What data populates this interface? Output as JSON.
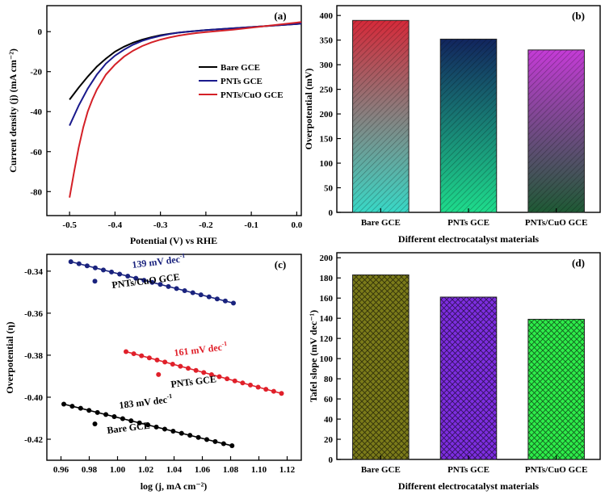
{
  "chart_data": [
    {
      "panel": "(a)",
      "type": "line",
      "xlabel": "Potential (V) vs RHE",
      "ylabel": "Current density (j) (mA cm⁻²)",
      "xlim": [
        -0.55,
        0.01
      ],
      "ylim": [
        -92,
        13
      ],
      "xticks": [
        -0.5,
        -0.4,
        -0.3,
        -0.2,
        -0.1,
        0.0
      ],
      "xtick_labels": [
        "-0.5",
        "-0.4",
        "-0.3",
        "-0.2",
        "-0.1",
        "0.0"
      ],
      "yticks": [
        0,
        -20,
        -40,
        -60,
        -80
      ],
      "ytick_labels": [
        "0",
        "-20",
        "-40",
        "-60",
        "-80"
      ],
      "legend_position": "right",
      "series": [
        {
          "name": "Bare GCE",
          "color": "#000000",
          "x": [
            -0.5,
            -0.48,
            -0.46,
            -0.44,
            -0.42,
            -0.4,
            -0.38,
            -0.36,
            -0.34,
            -0.32,
            -0.3,
            -0.28,
            -0.26,
            -0.24,
            -0.22,
            -0.2,
            -0.18,
            -0.16,
            -0.14,
            -0.12,
            -0.1,
            -0.08,
            -0.06,
            -0.04,
            -0.02,
            0.0,
            0.01
          ],
          "y": [
            -34,
            -28,
            -22.5,
            -17.5,
            -13.5,
            -10,
            -7.5,
            -5.5,
            -4,
            -2.8,
            -1.8,
            -1.1,
            -0.5,
            0,
            0.4,
            0.8,
            1.1,
            1.4,
            1.7,
            2,
            2.3,
            2.6,
            2.9,
            3.2,
            3.5,
            3.8,
            4
          ]
        },
        {
          "name": "PNTs GCE",
          "color": "#1a1a8c",
          "x": [
            -0.5,
            -0.48,
            -0.46,
            -0.44,
            -0.42,
            -0.4,
            -0.38,
            -0.36,
            -0.34,
            -0.32,
            -0.3,
            -0.28,
            -0.26,
            -0.24,
            -0.22,
            -0.2,
            -0.18,
            -0.16,
            -0.14,
            -0.12,
            -0.1,
            -0.08,
            -0.06,
            -0.04,
            -0.02,
            0.0,
            0.01
          ],
          "y": [
            -47,
            -37,
            -28.5,
            -21.5,
            -16,
            -12,
            -9,
            -6.5,
            -4.6,
            -3.2,
            -2.1,
            -1.2,
            -0.5,
            0,
            0.4,
            0.8,
            1.1,
            1.4,
            1.7,
            2,
            2.3,
            2.6,
            2.9,
            3.2,
            3.5,
            3.8,
            4
          ]
        },
        {
          "name": "PNTs/CuO GCE",
          "color": "#d42027",
          "x": [
            -0.5,
            -0.49,
            -0.48,
            -0.47,
            -0.46,
            -0.45,
            -0.44,
            -0.42,
            -0.4,
            -0.38,
            -0.36,
            -0.34,
            -0.32,
            -0.3,
            -0.28,
            -0.26,
            -0.24,
            -0.22,
            -0.2,
            -0.18,
            -0.16,
            -0.14,
            -0.12,
            -0.1,
            -0.08,
            -0.06,
            -0.04,
            -0.02,
            0.0,
            0.01
          ],
          "y": [
            -83,
            -70,
            -58,
            -48,
            -40,
            -34,
            -29,
            -21.5,
            -16.5,
            -12.5,
            -9.5,
            -7.2,
            -5.4,
            -4,
            -2.9,
            -2,
            -1.3,
            -0.7,
            -0.2,
            0.2,
            0.6,
            1,
            1.5,
            2,
            2.5,
            3,
            3.5,
            4,
            4.5,
            4.8
          ]
        }
      ]
    },
    {
      "panel": "(b)",
      "type": "bar",
      "xlabel": "Different electrocatalyst materials",
      "ylabel": "Overpotential (mV)",
      "ylim": [
        0,
        420
      ],
      "yticks": [
        0,
        50,
        100,
        150,
        200,
        250,
        300,
        350,
        400
      ],
      "ytick_labels": [
        "0",
        "50",
        "100",
        "150",
        "200",
        "250",
        "300",
        "350",
        "400"
      ],
      "categories": [
        "Bare GCE",
        "PNTs GCE",
        "PNTs/CuO GCE"
      ],
      "values": [
        390,
        352,
        330
      ],
      "gradients": [
        [
          "#d52a3a",
          "#38d8c6"
        ],
        [
          "#12255e",
          "#1edc8c"
        ],
        [
          "#c43bd6",
          "#1e5a34"
        ]
      ]
    },
    {
      "panel": "(c)",
      "type": "scatter",
      "xlabel": "log (j, mA cm⁻²)",
      "ylabel": "Overpotential (η)",
      "xlim": [
        0.95,
        1.13
      ],
      "ylim": [
        -0.43,
        -0.332
      ],
      "xticks": [
        0.96,
        0.98,
        1.0,
        1.02,
        1.04,
        1.06,
        1.08,
        1.1,
        1.12
      ],
      "xtick_labels": [
        "0.96",
        "0.98",
        "1.00",
        "1.02",
        "1.04",
        "1.06",
        "1.08",
        "1.10",
        "1.12"
      ],
      "yticks": [
        -0.34,
        -0.36,
        -0.38,
        -0.4,
        -0.42
      ],
      "ytick_labels": [
        "-0.34",
        "-0.36",
        "-0.38",
        "-0.40",
        "-0.42"
      ],
      "series": [
        {
          "name": "PNTs/CuO GCE",
          "color": "#1a237e",
          "slope_label": "139 mV dec",
          "x_start": 0.967,
          "x_end": 1.082,
          "y_start": -0.3355,
          "y_end": -0.3552,
          "points": 21,
          "legend_marker": [
            0.984,
            -0.3448
          ]
        },
        {
          "name": "PNTs GCE",
          "color": "#e0202a",
          "slope_label": "161 mV dec",
          "x_start": 1.006,
          "x_end": 1.116,
          "y_start": -0.3783,
          "y_end": -0.3982,
          "points": 21,
          "legend_marker": [
            1.029,
            -0.3892
          ]
        },
        {
          "name": "Bare GCE",
          "color": "#000000",
          "slope_label": "183 mV dec",
          "x_start": 0.962,
          "x_end": 1.081,
          "y_start": -0.4033,
          "y_end": -0.4231,
          "points": 21,
          "legend_marker": [
            0.984,
            -0.4127
          ]
        }
      ],
      "slope_unit_sup": "-1"
    },
    {
      "panel": "(d)",
      "type": "bar",
      "xlabel": "Different electrocatalyst materials",
      "ylabel": "Tafel slope (mV dec⁻¹)",
      "ylim": [
        0,
        205
      ],
      "yticks": [
        0,
        20,
        40,
        60,
        80,
        100,
        120,
        140,
        160,
        180,
        200
      ],
      "ytick_labels": [
        "0",
        "20",
        "40",
        "60",
        "80",
        "100",
        "120",
        "140",
        "160",
        "180",
        "200"
      ],
      "categories": [
        "Bare GCE",
        "PNTs GCE",
        "PNTs/CuO GCE"
      ],
      "values": [
        183,
        161,
        139
      ],
      "colors": [
        "#7b7b1a",
        "#7d2de0",
        "#2eed4a"
      ]
    }
  ]
}
